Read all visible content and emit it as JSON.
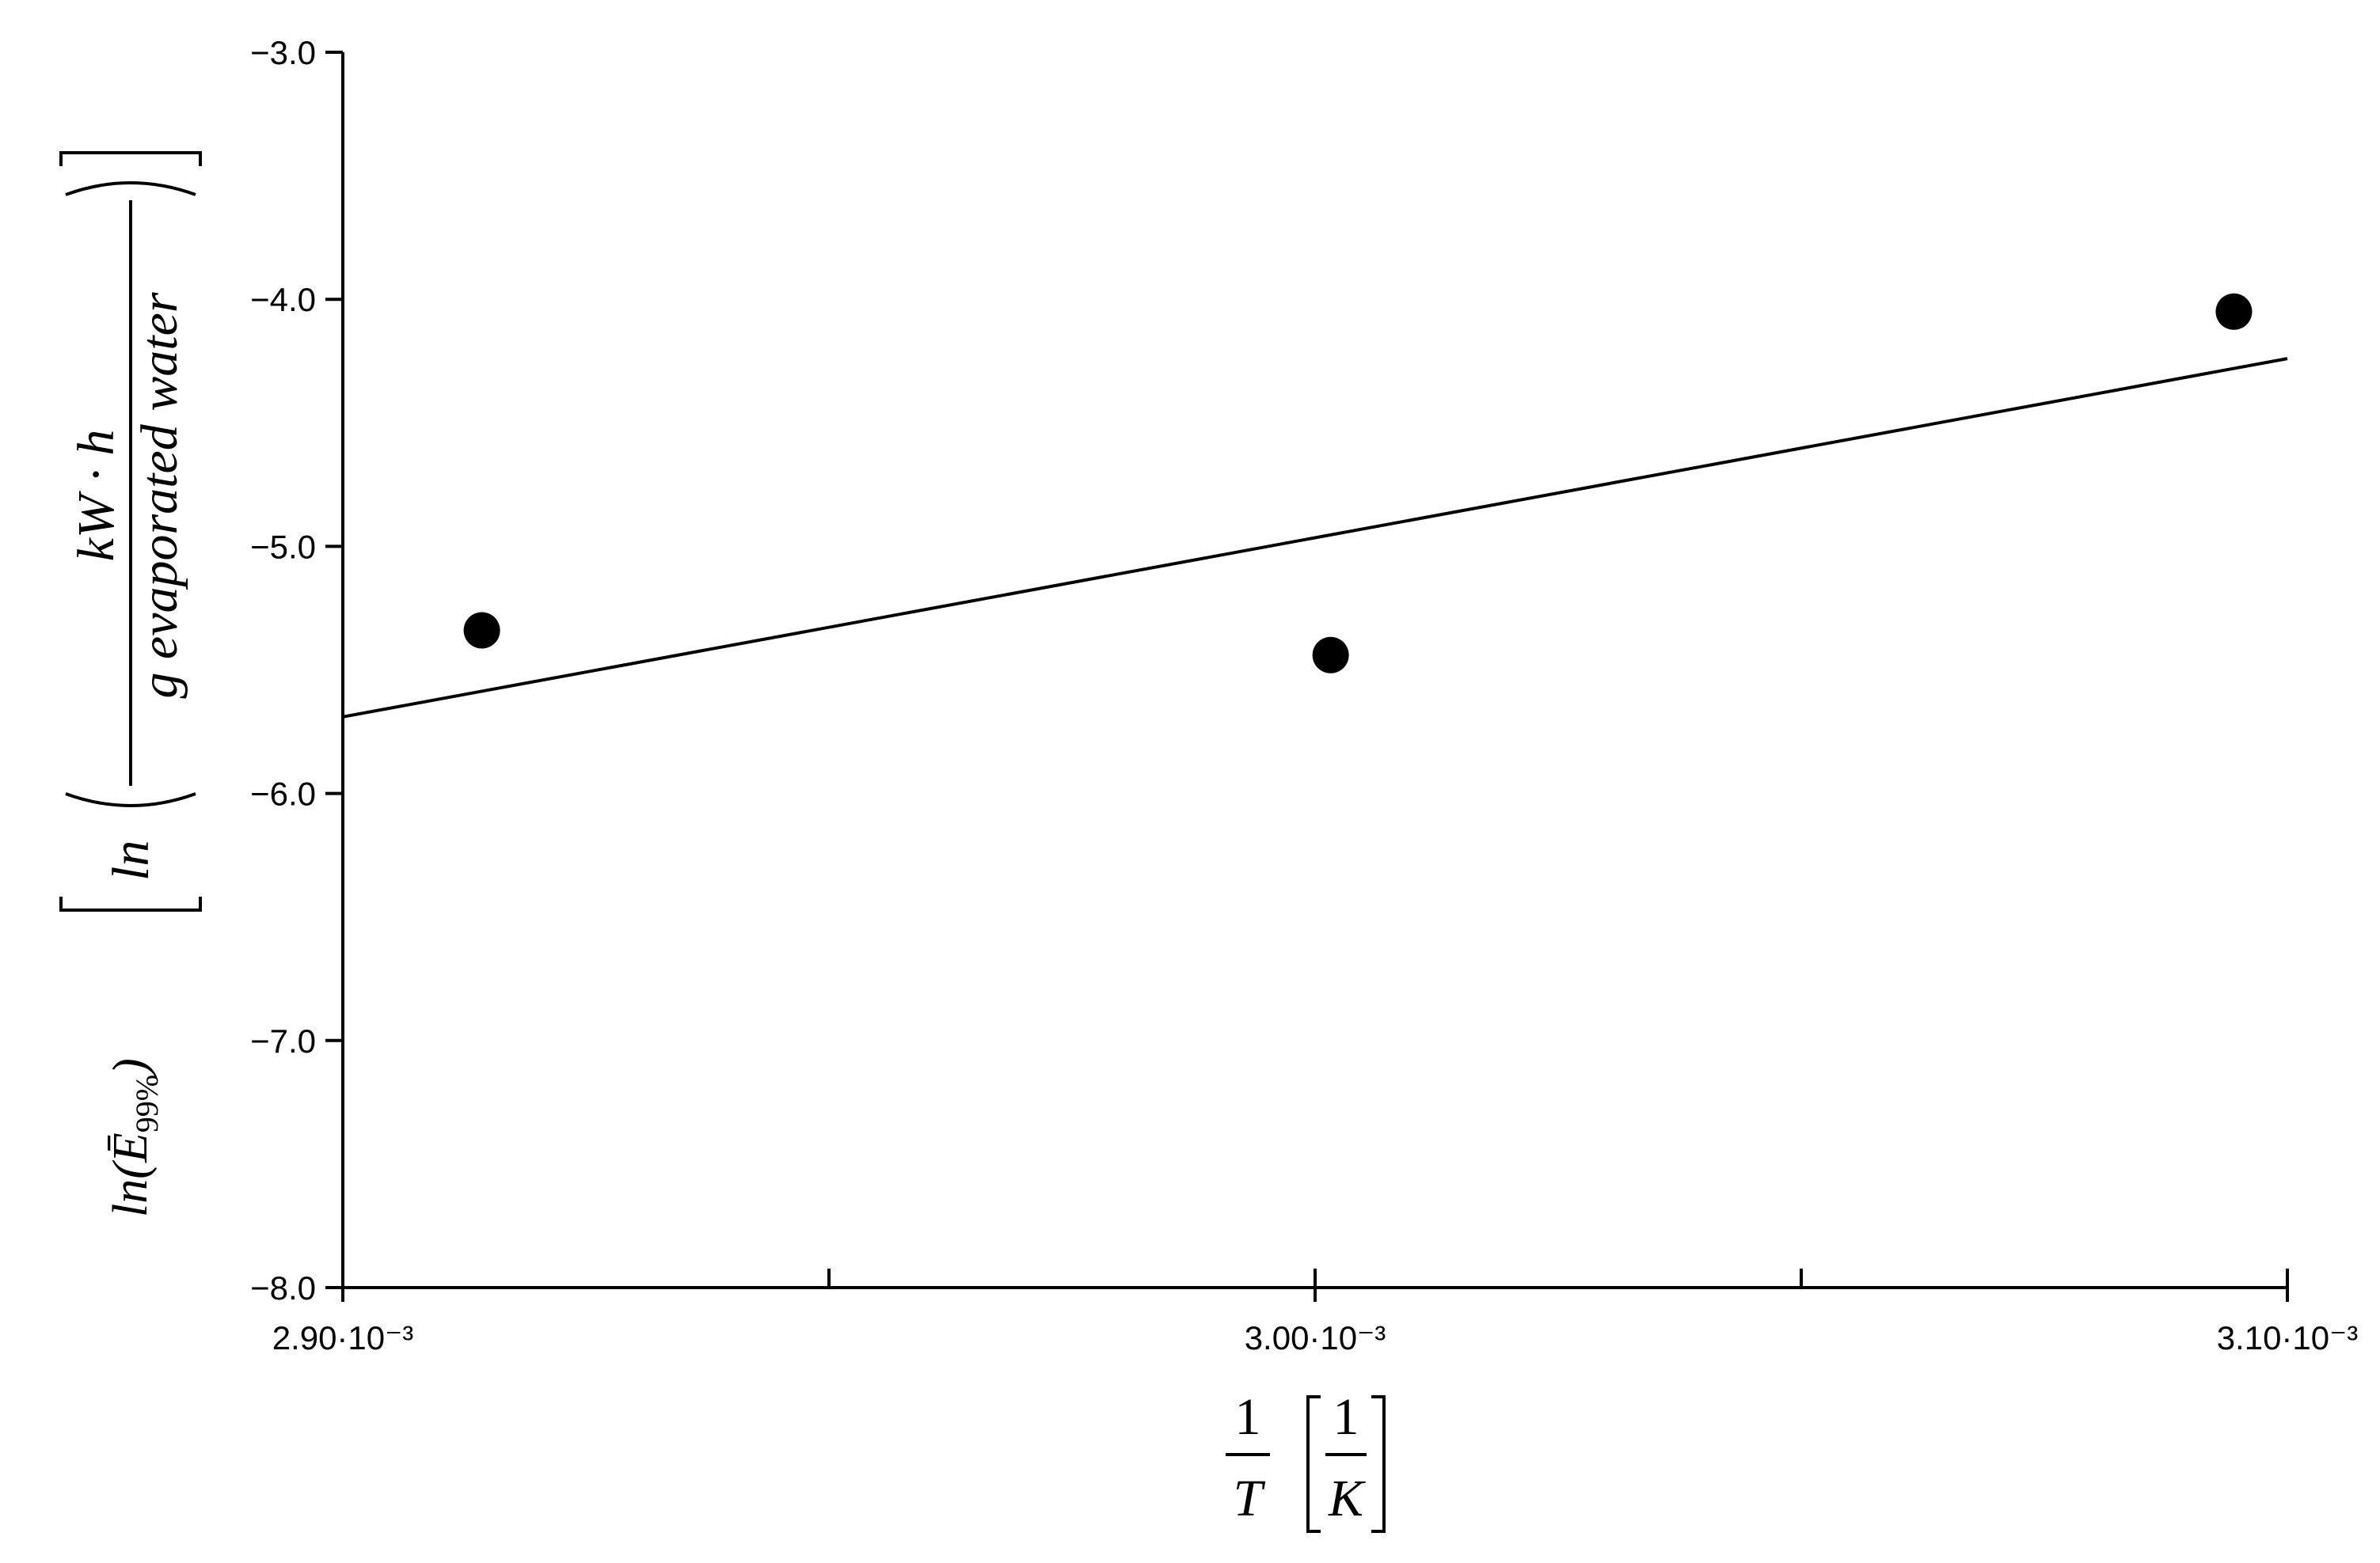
{
  "chart_data": {
    "type": "scatter",
    "x": [
      0.0029143,
      0.0030016,
      0.0030945
    ],
    "series": [
      {
        "color": "#000000",
        "values": [
          -5.34,
          -5.44,
          -4.05
        ]
      }
    ],
    "fit": {
      "x": [
        0.0029,
        0.0031
      ],
      "y": [
        -5.69,
        -4.24
      ],
      "color": "#000000"
    },
    "xlim": [
      0.0029,
      0.0031
    ],
    "ylim": [
      -8,
      -3
    ],
    "xticks": [
      {
        "value": 0.0029,
        "label": "2.90·10⁻³"
      },
      {
        "value": 0.003,
        "label": "3.00·10⁻³"
      },
      {
        "value": 0.0031,
        "label": "3.10·10⁻³"
      }
    ],
    "xminor_ticks": [
      0.00295,
      0.00305
    ],
    "yticks": [
      {
        "value": -8,
        "label": "−8.0"
      },
      {
        "value": -7,
        "label": "−7.0"
      },
      {
        "value": -6,
        "label": "−6.0"
      },
      {
        "value": -5,
        "label": "−5.0"
      },
      {
        "value": -4,
        "label": "−4.0"
      },
      {
        "value": -3,
        "label": "−3.0"
      }
    ],
    "grid": false,
    "xlabel": {
      "numerator": "1",
      "denominator": "T",
      "unit_numerator": "1",
      "unit_denominator": "K"
    },
    "ylabel": {
      "quantity": "ln(Ē",
      "quantity_sub": "99%",
      "quantity_close": ")",
      "unit_fn": "ln",
      "unit_numerator": "kW · h",
      "unit_denominator": "g evaporated water"
    }
  }
}
